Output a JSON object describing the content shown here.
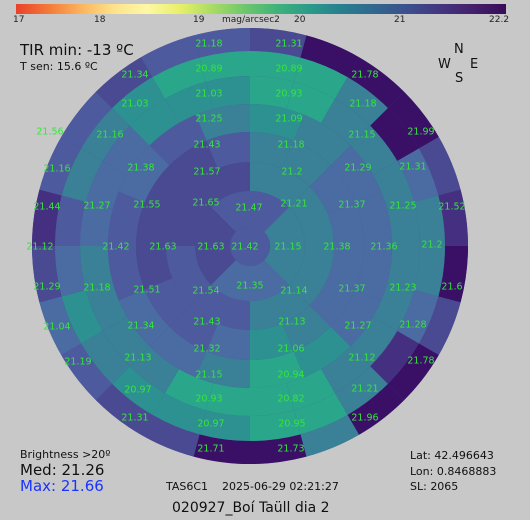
{
  "colorbar": {
    "unit": "mag/arcsec2",
    "ticks": [
      "17",
      "18",
      "19",
      "20",
      "21",
      "22.2"
    ],
    "min": 17,
    "max": 22.2
  },
  "header": {
    "tir": "TIR min: -13 ºC",
    "tsen": "T sen: 15.6 ºC"
  },
  "compass": {
    "n": "N",
    "w": "W",
    "e": "E",
    "s": "S"
  },
  "stats": {
    "brightness_label": "Brightness >20º",
    "med": "Med: 21.26",
    "max": "Max: 21.66"
  },
  "footer": {
    "device": "TAS6C1",
    "datetime": "2025-06-29  02:21:27",
    "lat": "Lat: 42.496643",
    "lon": "Lon: 0.8468883",
    "sl": "SL:  2065",
    "title": "020927_Boí Taüll dia 2"
  },
  "chart_data": {
    "type": "heatmap",
    "title": "",
    "value_unit": "mag/arcsec2",
    "zenith": 21.42,
    "labels": [
      [
        "21.18",
        209,
        44
      ],
      [
        "21.31",
        289,
        44
      ],
      [
        "21.34",
        135,
        75
      ],
      [
        "20.89",
        209,
        69
      ],
      [
        "20.89",
        289,
        69
      ],
      [
        "21.78",
        365,
        75
      ],
      [
        "21.03",
        135,
        104
      ],
      [
        "21.03",
        209,
        94
      ],
      [
        "20.93",
        289,
        94
      ],
      [
        "21.18",
        363,
        104
      ],
      [
        "21.56",
        50,
        132
      ],
      [
        "21.16",
        110,
        135
      ],
      [
        "21.25",
        209,
        119
      ],
      [
        "21.09",
        289,
        119
      ],
      [
        "21.15",
        362,
        135
      ],
      [
        "21.99",
        421,
        132
      ],
      [
        "21.43",
        207,
        145
      ],
      [
        "21.18",
        291,
        145
      ],
      [
        "21.16",
        57,
        169
      ],
      [
        "21.38",
        141,
        168
      ],
      [
        "21.57",
        207,
        172
      ],
      [
        "21.2",
        292,
        172
      ],
      [
        "21.29",
        358,
        168
      ],
      [
        "21.31",
        413,
        167
      ],
      [
        "21.44",
        47,
        207
      ],
      [
        "21.27",
        97,
        206
      ],
      [
        "21.55",
        147,
        205
      ],
      [
        "21.65",
        206,
        203
      ],
      [
        "21.47",
        249,
        208
      ],
      [
        "21.21",
        294,
        204
      ],
      [
        "21.37",
        352,
        205
      ],
      [
        "21.25",
        403,
        206
      ],
      [
        "21.52",
        452,
        207
      ],
      [
        "21.12",
        40,
        247
      ],
      [
        "21.42",
        116,
        247
      ],
      [
        "21.63",
        163,
        247
      ],
      [
        "21.63",
        211,
        247
      ],
      [
        "21.42",
        245,
        247
      ],
      [
        "21.15",
        288,
        247
      ],
      [
        "21.38",
        337,
        247
      ],
      [
        "21.36",
        384,
        247
      ],
      [
        "21.2",
        432,
        245
      ],
      [
        "21.29",
        47,
        287
      ],
      [
        "21.18",
        97,
        288
      ],
      [
        "21.51",
        147,
        290
      ],
      [
        "21.54",
        206,
        291
      ],
      [
        "21.35",
        250,
        286
      ],
      [
        "21.14",
        294,
        291
      ],
      [
        "21.37",
        352,
        289
      ],
      [
        "21.23",
        403,
        288
      ],
      [
        "21.6",
        452,
        287
      ],
      [
        "21.04",
        57,
        327
      ],
      [
        "21.34",
        141,
        326
      ],
      [
        "21.43",
        207,
        322
      ],
      [
        "21.13",
        292,
        322
      ],
      [
        "21.27",
        358,
        326
      ],
      [
        "21.28",
        413,
        325
      ],
      [
        "21.32",
        207,
        349
      ],
      [
        "21.06",
        291,
        349
      ],
      [
        "21.19",
        78,
        362
      ],
      [
        "21.13",
        138,
        358
      ],
      [
        "21.12",
        362,
        358
      ],
      [
        "21.78",
        421,
        361
      ],
      [
        "21.15",
        209,
        375
      ],
      [
        "20.94",
        291,
        375
      ],
      [
        "20.97",
        138,
        390
      ],
      [
        "21.21",
        365,
        389
      ],
      [
        "20.93",
        209,
        399
      ],
      [
        "20.82",
        291,
        399
      ],
      [
        "21.31",
        135,
        418
      ],
      [
        "20.97",
        211,
        424
      ],
      [
        "20.95",
        292,
        424
      ],
      [
        "21.96",
        365,
        418
      ],
      [
        "21.71",
        211,
        449
      ],
      [
        "21.73",
        291,
        449
      ]
    ]
  }
}
